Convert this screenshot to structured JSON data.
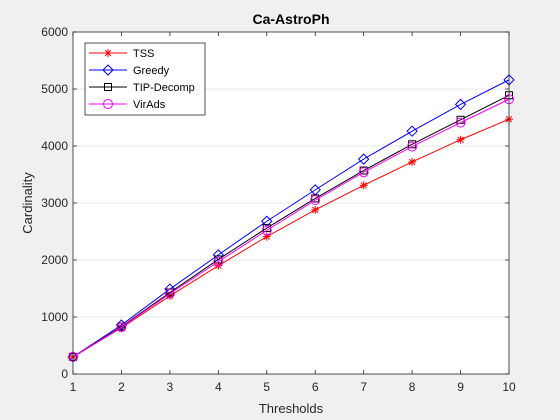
{
  "chart_data": {
    "type": "line",
    "title": "Ca-AstroPh",
    "xlabel": "Thresholds",
    "ylabel": "Cardinality",
    "x": [
      1,
      2,
      3,
      4,
      5,
      6,
      7,
      8,
      9,
      10
    ],
    "xlim": [
      1,
      10
    ],
    "ylim": [
      0,
      6000
    ],
    "xticks": [
      "1",
      "2",
      "3",
      "4",
      "5",
      "6",
      "7",
      "8",
      "9",
      "10"
    ],
    "yticks": [
      "0",
      "1000",
      "2000",
      "3000",
      "4000",
      "5000",
      "6000"
    ],
    "ytick_values": [
      0,
      1000,
      2000,
      3000,
      4000,
      5000,
      6000
    ],
    "grid": "horizontal",
    "legend_position": "top-left",
    "series": [
      {
        "name": "TSS",
        "color": "#ff0000",
        "marker": "asterisk",
        "values": [
          300,
          810,
          1370,
          1900,
          2410,
          2880,
          3310,
          3720,
          4110,
          4470
        ]
      },
      {
        "name": "Greedy",
        "color": "#0000ff",
        "marker": "diamond",
        "values": [
          300,
          860,
          1490,
          2090,
          2680,
          3230,
          3770,
          4260,
          4730,
          5160
        ]
      },
      {
        "name": "TIP-Decomp",
        "color": "#000000",
        "marker": "square",
        "values": [
          300,
          830,
          1430,
          2010,
          2560,
          3080,
          3570,
          4030,
          4460,
          4890
        ]
      },
      {
        "name": "VirAds",
        "color": "#ff00ff",
        "marker": "circle",
        "values": [
          300,
          820,
          1410,
          1970,
          2520,
          3050,
          3540,
          3990,
          4410,
          4820
        ]
      }
    ]
  }
}
